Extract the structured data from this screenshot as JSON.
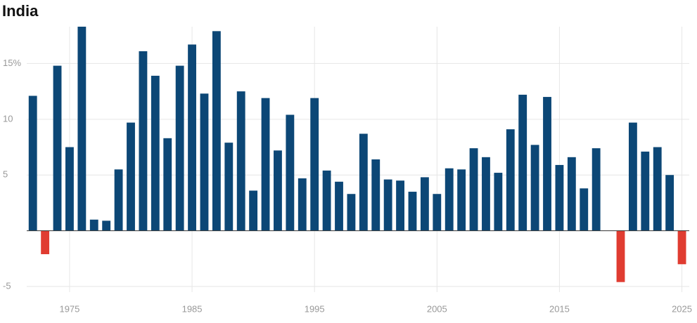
{
  "chart_data": {
    "type": "bar",
    "title": "India",
    "x": [
      1972,
      1973,
      1974,
      1975,
      1976,
      1977,
      1978,
      1979,
      1980,
      1981,
      1982,
      1983,
      1984,
      1985,
      1986,
      1987,
      1988,
      1989,
      1990,
      1991,
      1992,
      1993,
      1994,
      1995,
      1996,
      1997,
      1998,
      1999,
      2000,
      2001,
      2002,
      2003,
      2004,
      2005,
      2006,
      2007,
      2008,
      2009,
      2010,
      2011,
      2012,
      2013,
      2014,
      2015,
      2016,
      2017,
      2018,
      2019,
      2020,
      2021,
      2022,
      2023,
      2024,
      2025
    ],
    "values": [
      12.1,
      -2.1,
      14.8,
      7.5,
      18.3,
      1.0,
      0.9,
      5.5,
      9.7,
      16.1,
      13.9,
      8.3,
      14.8,
      16.7,
      12.3,
      17.9,
      7.9,
      12.5,
      3.6,
      11.9,
      7.2,
      10.4,
      4.7,
      11.9,
      5.4,
      4.4,
      3.3,
      8.7,
      6.4,
      4.6,
      4.5,
      3.5,
      4.8,
      3.3,
      5.6,
      5.5,
      7.4,
      6.6,
      5.2,
      9.1,
      12.2,
      7.7,
      12.0,
      5.9,
      6.6,
      3.8,
      7.4,
      null,
      -4.6,
      9.7,
      7.1,
      7.5,
      5.0,
      -3.0
    ],
    "positive_color": "#0c4776",
    "negative_color": "#e03c31",
    "xlim": [
      1971.5,
      2025.6
    ],
    "xticks": [
      1975,
      1985,
      1995,
      2005,
      2015,
      2025
    ],
    "ylim": [
      -5.5,
      18.3
    ],
    "yticks": [
      -5,
      5,
      10,
      {
        "value": 15,
        "label": "15%"
      }
    ],
    "grid": true
  }
}
